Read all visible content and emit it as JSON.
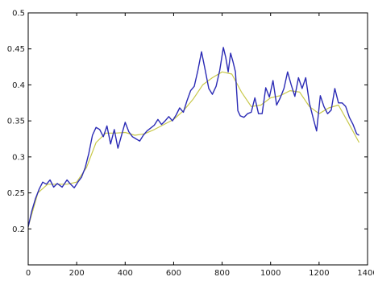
{
  "chart_data": {
    "type": "line",
    "title": "",
    "xlabel": "",
    "ylabel": "",
    "xlim": [
      0,
      1400
    ],
    "ylim": [
      0.15,
      0.5
    ],
    "grid": false,
    "legend": "none",
    "x_ticks": [
      0,
      200,
      400,
      600,
      800,
      1000,
      1200,
      1400
    ],
    "x_tick_labels": [
      "0",
      "200",
      "400",
      "600",
      "800",
      "1000",
      "1200",
      "1400"
    ],
    "y_ticks": [
      0.2,
      0.25,
      0.3,
      0.35,
      0.4,
      0.45,
      0.5
    ],
    "y_tick_labels": [
      "0.2",
      "0.25",
      "0.3",
      "0.35",
      "0.4",
      "0.45",
      "0.5"
    ],
    "series": [
      {
        "color": "#2b2bb5",
        "x": [
          0,
          15,
          30,
          45,
          60,
          75,
          90,
          105,
          120,
          140,
          160,
          175,
          190,
          205,
          220,
          235,
          250,
          265,
          280,
          295,
          310,
          325,
          340,
          355,
          370,
          385,
          400,
          415,
          430,
          445,
          460,
          475,
          490,
          505,
          520,
          535,
          550,
          565,
          580,
          595,
          610,
          625,
          640,
          655,
          670,
          685,
          700,
          715,
          730,
          745,
          760,
          775,
          790,
          805,
          815,
          825,
          835,
          845,
          855,
          865,
          875,
          890,
          905,
          920,
          935,
          950,
          965,
          980,
          995,
          1010,
          1025,
          1040,
          1055,
          1070,
          1085,
          1100,
          1115,
          1130,
          1145,
          1160,
          1175,
          1190,
          1205,
          1220,
          1235,
          1250,
          1265,
          1280,
          1295,
          1310,
          1325,
          1340,
          1355,
          1365
        ],
        "values": [
          0.203,
          0.225,
          0.242,
          0.255,
          0.265,
          0.262,
          0.268,
          0.258,
          0.263,
          0.258,
          0.268,
          0.262,
          0.257,
          0.265,
          0.272,
          0.285,
          0.305,
          0.33,
          0.341,
          0.338,
          0.328,
          0.343,
          0.318,
          0.338,
          0.312,
          0.33,
          0.348,
          0.335,
          0.328,
          0.325,
          0.322,
          0.33,
          0.336,
          0.34,
          0.344,
          0.352,
          0.345,
          0.35,
          0.356,
          0.35,
          0.358,
          0.368,
          0.362,
          0.378,
          0.392,
          0.398,
          0.42,
          0.446,
          0.421,
          0.395,
          0.387,
          0.398,
          0.42,
          0.452,
          0.438,
          0.418,
          0.444,
          0.432,
          0.418,
          0.364,
          0.357,
          0.355,
          0.36,
          0.362,
          0.382,
          0.36,
          0.36,
          0.396,
          0.383,
          0.406,
          0.372,
          0.382,
          0.395,
          0.418,
          0.4,
          0.384,
          0.41,
          0.395,
          0.41,
          0.375,
          0.355,
          0.336,
          0.385,
          0.37,
          0.36,
          0.365,
          0.395,
          0.375,
          0.375,
          0.37,
          0.355,
          0.345,
          0.332,
          0.33
        ]
      },
      {
        "color": "#c8c84a",
        "x": [
          0,
          40,
          80,
          120,
          160,
          200,
          240,
          280,
          320,
          360,
          400,
          440,
          480,
          520,
          560,
          600,
          640,
          680,
          720,
          760,
          800,
          840,
          880,
          920,
          960,
          1000,
          1040,
          1080,
          1120,
          1160,
          1200,
          1240,
          1280,
          1320,
          1365
        ],
        "values": [
          0.203,
          0.25,
          0.262,
          0.262,
          0.262,
          0.265,
          0.285,
          0.32,
          0.333,
          0.333,
          0.334,
          0.33,
          0.332,
          0.338,
          0.345,
          0.352,
          0.364,
          0.38,
          0.4,
          0.41,
          0.418,
          0.415,
          0.39,
          0.37,
          0.372,
          0.382,
          0.385,
          0.392,
          0.39,
          0.37,
          0.36,
          0.368,
          0.372,
          0.348,
          0.32
        ]
      }
    ]
  }
}
